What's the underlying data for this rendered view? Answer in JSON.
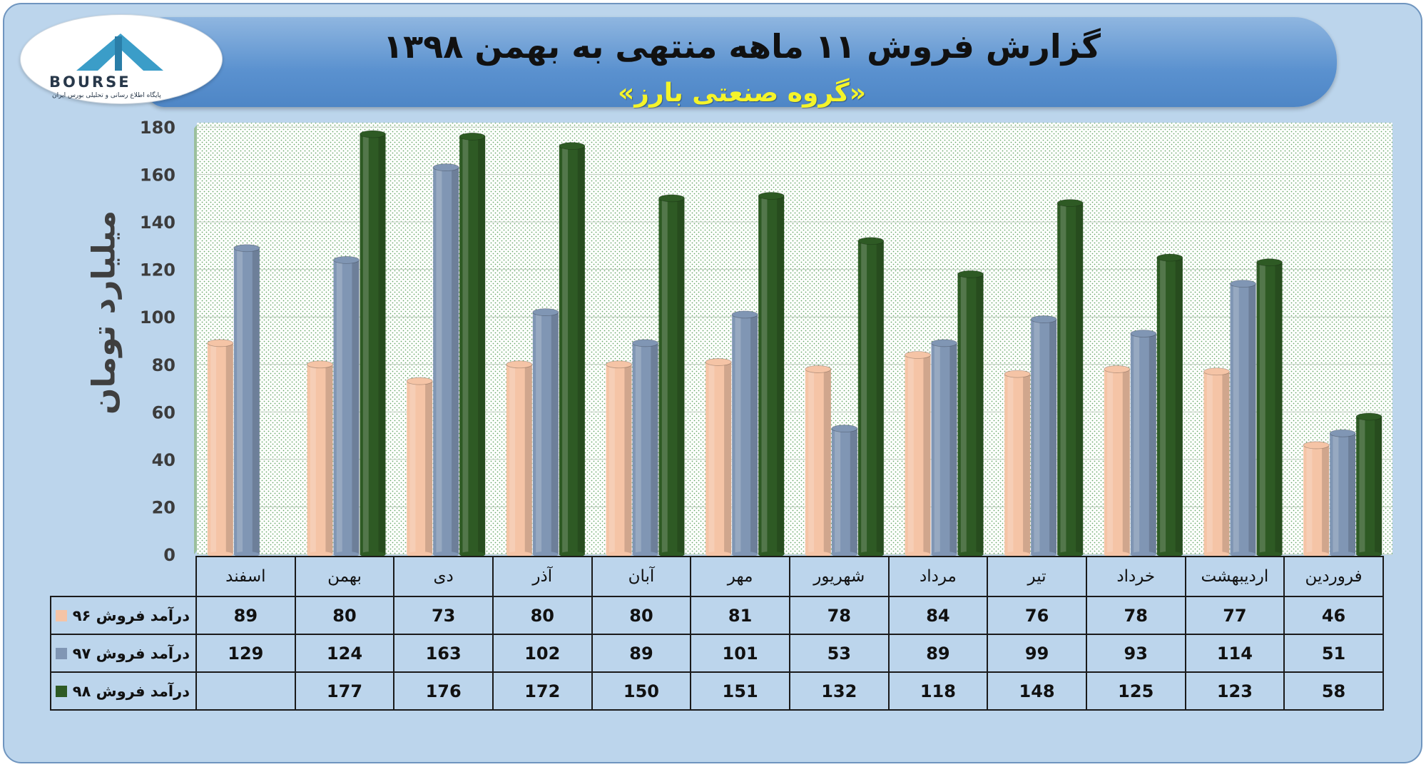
{
  "header": {
    "title": "گزارش فروش ۱۱ ماهه منتهی به بهمن ۱۳۹۸",
    "subtitle": "«گروه صنعتی بارز»"
  },
  "logo": {
    "wordmark": "BOURSE",
    "tagline": "پایگاه اطلاع رسانی و تحلیلی بورس ایران"
  },
  "chart_data": {
    "type": "bar",
    "ylabel": "میلیارد تومان",
    "ylim": [
      0,
      180
    ],
    "yticks": [
      0,
      20,
      40,
      60,
      80,
      100,
      120,
      140,
      160,
      180
    ],
    "grid": true,
    "categories": [
      "فروردین",
      "اردیبهشت",
      "خرداد",
      "تیر",
      "مرداد",
      "شهریور",
      "مهر",
      "آبان",
      "آذر",
      "دی",
      "بهمن",
      "اسفند"
    ],
    "series": [
      {
        "name": "درآمد فروش ۹۶",
        "color": "#f5c4a6",
        "values": [
          46,
          77,
          78,
          76,
          84,
          78,
          81,
          80,
          80,
          73,
          80,
          89
        ]
      },
      {
        "name": "درآمد فروش ۹۷",
        "color": "#8096b4",
        "values": [
          51,
          114,
          93,
          99,
          89,
          53,
          101,
          89,
          102,
          163,
          124,
          129
        ]
      },
      {
        "name": "درآمد فروش ۹۸",
        "color": "#2e5a24",
        "values": [
          58,
          123,
          125,
          148,
          118,
          132,
          151,
          150,
          172,
          176,
          177,
          null
        ]
      }
    ]
  }
}
